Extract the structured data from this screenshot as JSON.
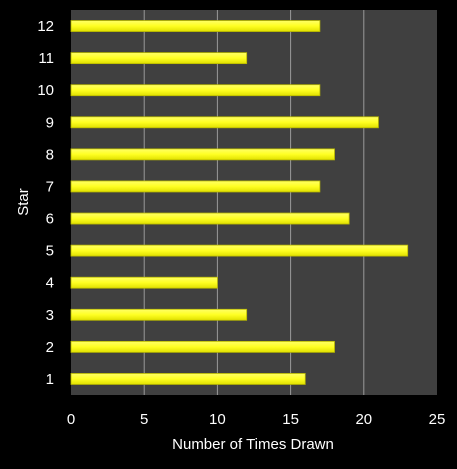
{
  "chart_data": {
    "type": "bar",
    "orientation": "horizontal",
    "title": "",
    "xlabel": "Number of Times Drawn",
    "ylabel": "Star",
    "categories": [
      "1",
      "2",
      "3",
      "4",
      "5",
      "6",
      "7",
      "8",
      "9",
      "10",
      "11",
      "12"
    ],
    "values": [
      16,
      18,
      12,
      10,
      23,
      19,
      17,
      18,
      21,
      17,
      12,
      17
    ],
    "xlim": [
      0,
      25
    ],
    "xticks": [
      "0",
      "5",
      "10",
      "15",
      "20",
      "25"
    ],
    "grid": "vertical",
    "legend": "none",
    "colors": {
      "page_background": "#000000",
      "plot_background": "#404040",
      "bar_fill": "#ffff33",
      "bar_edge": "#b8b800",
      "gridline": "#9a9a9a",
      "text": "#ffffff"
    }
  }
}
